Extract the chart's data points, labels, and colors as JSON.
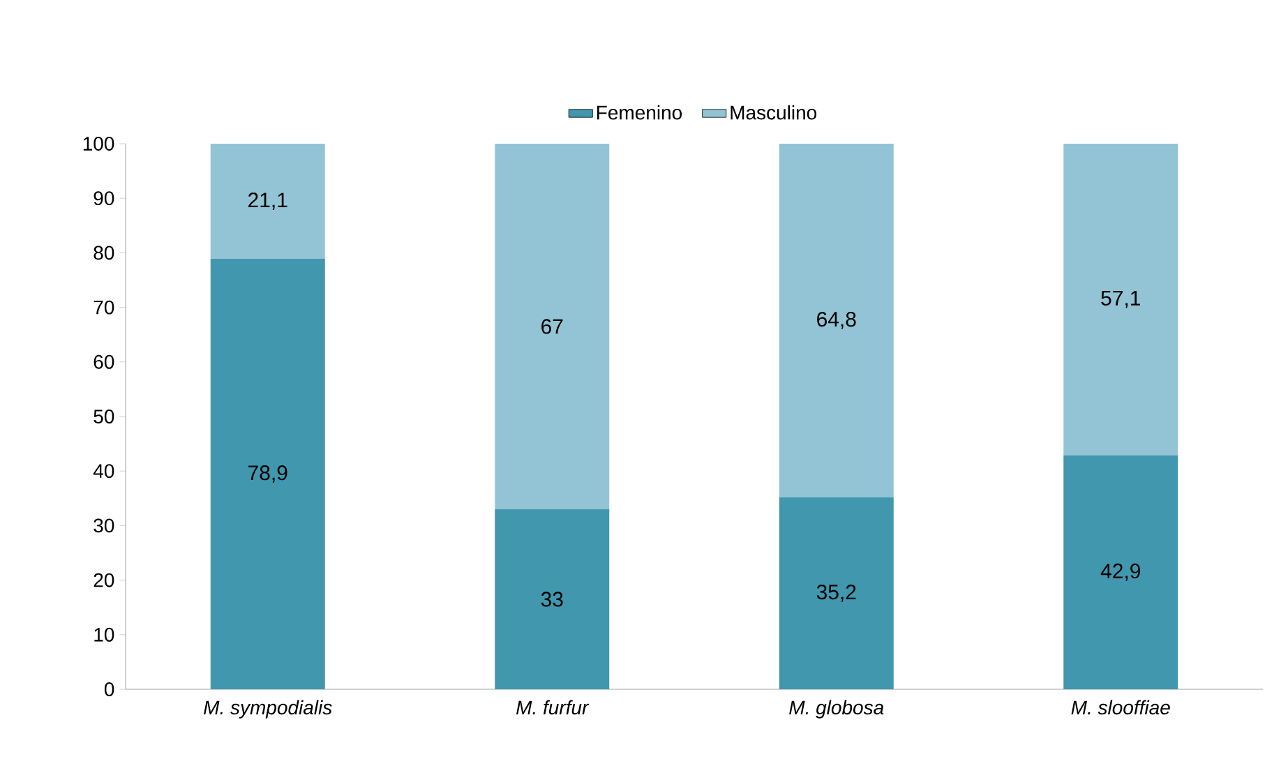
{
  "chart_data": {
    "type": "bar",
    "stacked": true,
    "categories": [
      "M. sympodialis",
      "M. furfur",
      "M. globosa",
      "M. slooffiae"
    ],
    "series": [
      {
        "name": "Femenino",
        "color": "#4197ae",
        "values": [
          78.9,
          33,
          35.2,
          42.9
        ],
        "value_labels": [
          "78,9",
          "33",
          "35,2",
          "42,9"
        ]
      },
      {
        "name": "Masculino",
        "color": "#93c4d5",
        "values": [
          21.1,
          67,
          64.8,
          57.1
        ],
        "value_labels": [
          "21,1",
          "67",
          "64,8",
          "57,1"
        ]
      }
    ],
    "ylim": [
      0,
      100
    ],
    "yticks": [
      0,
      10,
      20,
      30,
      40,
      50,
      60,
      70,
      80,
      90,
      100
    ],
    "grid": false,
    "legend": "top"
  }
}
